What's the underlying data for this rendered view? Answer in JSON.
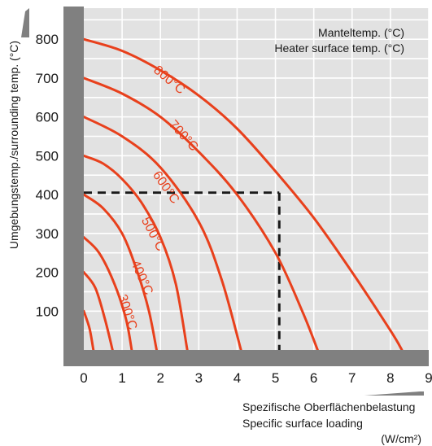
{
  "chart_data": {
    "type": "line",
    "ylabel": "Umgebungstemp./surrounding temp. (°C)",
    "xlabel_lines": [
      "Spezifische Oberflächenbelastung",
      "Specific surface loading"
    ],
    "xunit": "(W/cm²)",
    "legend_lines": [
      "Manteltemp. (°C)",
      "Heater surface temp. (°C)"
    ],
    "xlim": [
      0,
      9
    ],
    "ylim": [
      0,
      880
    ],
    "xticks": [
      "0",
      "1",
      "2",
      "3",
      "4",
      "5",
      "6",
      "7",
      "8",
      "9"
    ],
    "yticks": [
      "100",
      "200",
      "300",
      "400",
      "500",
      "600",
      "700",
      "800"
    ],
    "grid": true,
    "series": [
      {
        "name": "800°C",
        "x": [
          0,
          1,
          2,
          3,
          4,
          5,
          6,
          7,
          8,
          8.3
        ],
        "y": [
          800,
          770,
          720,
          655,
          570,
          460,
          340,
          200,
          50,
          0
        ]
      },
      {
        "name": "700°C",
        "x": [
          0,
          1,
          2,
          3,
          4,
          5,
          5.7,
          6.1
        ],
        "y": [
          700,
          660,
          600,
          510,
          400,
          250,
          100,
          0
        ]
      },
      {
        "name": "600°C",
        "x": [
          0,
          1,
          2,
          3,
          3.6,
          4.1
        ],
        "y": [
          600,
          550,
          470,
          330,
          180,
          0
        ]
      },
      {
        "name": "500°C",
        "x": [
          0,
          0.5,
          1,
          1.5,
          2,
          2.4,
          2.7
        ],
        "y": [
          500,
          480,
          440,
          380,
          290,
          170,
          0
        ]
      },
      {
        "name": "400°C",
        "x": [
          0,
          0.5,
          1,
          1.4,
          1.7,
          1.9
        ],
        "y": [
          400,
          365,
          300,
          200,
          100,
          0
        ]
      },
      {
        "name": "300°C",
        "x": [
          0,
          0.4,
          0.8,
          1.1,
          1.25
        ],
        "y": [
          290,
          250,
          170,
          80,
          0
        ]
      },
      {
        "name": "",
        "x": [
          0,
          0.3,
          0.55,
          0.75
        ],
        "y": [
          200,
          160,
          80,
          0
        ]
      },
      {
        "name": "",
        "x": [
          0,
          0.15,
          0.25
        ],
        "y": [
          100,
          55,
          0
        ]
      }
    ],
    "reference_lines": [
      {
        "from": [
          0,
          405
        ],
        "to": [
          5.1,
          405
        ]
      },
      {
        "from": [
          5.1,
          405
        ],
        "to": [
          5.1,
          0
        ]
      }
    ],
    "colors": {
      "curve": "#e8401c",
      "frame": "#808080",
      "grid": "#ffffff",
      "plot_bg": "#e2e2e2",
      "reference": "#1a1a1a"
    }
  }
}
